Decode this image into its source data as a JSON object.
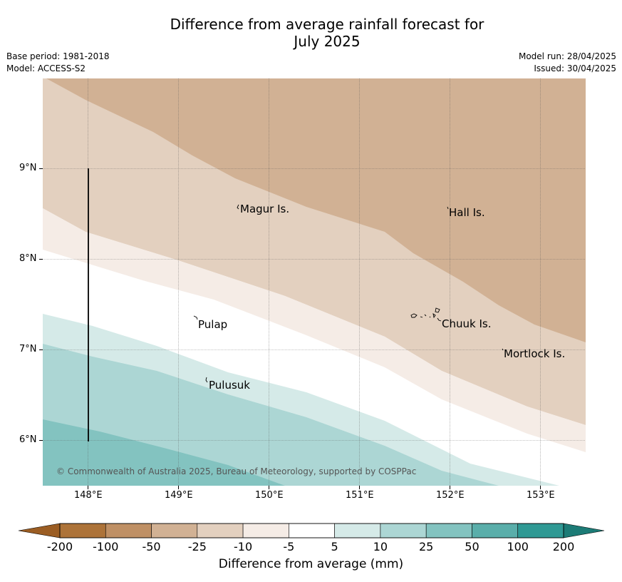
{
  "title": "Difference from average rainfall forecast for\nJuly 2025",
  "title_line1": "Difference from average rainfall forecast for",
  "title_line2": "July 2025",
  "base_period": "Base period: 1981-2018",
  "model": "Model: ACCESS-S2",
  "model_run": "Model run: 28/04/2025",
  "issued": "Issued: 30/04/2025",
  "map": {
    "lat_labels": [
      "9°N",
      "8°N",
      "7°N",
      "6°N"
    ],
    "lon_labels": [
      "148°E",
      "149°E",
      "150°E",
      "151°E",
      "152°E",
      "153°E"
    ],
    "places": [
      "Magur Is.",
      "Hall Is.",
      "Pulap",
      "Chuuk Is.",
      "Mortlock Is.",
      "Pulusuk"
    ],
    "copyright": "© Commonwealth of Australia 2025, Bureau of Meteorology, supported by COSPPac",
    "colors": {
      "-50_to_-25": "#d1b194",
      "-25_to_-10": "#e3d0bf",
      "-10_to_-5": "#f5ece6",
      "-5_to_5": "#ffffff",
      "5_to_10": "#d5eae8",
      "10_to_25": "#acd6d4",
      "25_to_50": "#83c3c0"
    }
  },
  "colorbar": {
    "title": "Difference from average (mm)",
    "labels": [
      "-200",
      "-100",
      "-50",
      "-25",
      "-10",
      "-5",
      "5",
      "10",
      "25",
      "50",
      "100",
      "200"
    ],
    "colors": [
      "#ad7339",
      "#bf9065",
      "#d1b194",
      "#e3d0bf",
      "#f5ece6",
      "#ffffff",
      "#d5eae8",
      "#acd6d4",
      "#83c3c0",
      "#5aaeaa",
      "#2f9994"
    ],
    "under_color": "#9b5d23",
    "over_color": "#1c7b76"
  }
}
